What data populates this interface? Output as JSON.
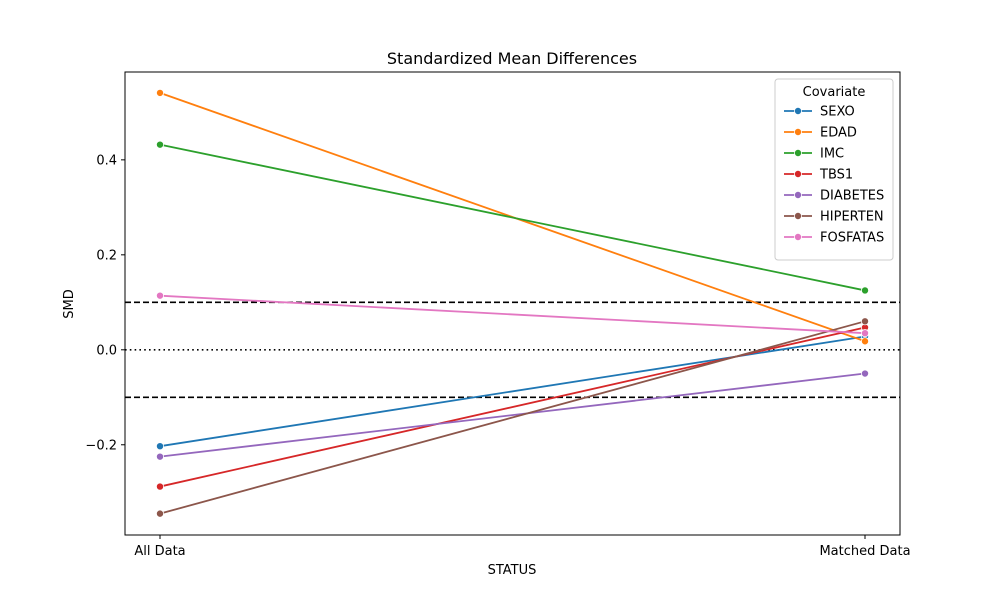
{
  "chart_data": {
    "type": "line",
    "title": "Standardized Mean Differences",
    "xlabel": "STATUS",
    "ylabel": "SMD",
    "categories": [
      "All Data",
      "Matched Data"
    ],
    "ylim": [
      -0.39,
      0.585
    ],
    "yticks": [
      -0.2,
      0.0,
      0.2,
      0.4
    ],
    "ytick_labels": [
      "−0.2",
      "0.0",
      "0.2",
      "0.4"
    ],
    "reference_lines": [
      {
        "y": 0.1,
        "style": "dashed",
        "color": "#000000"
      },
      {
        "y": 0.0,
        "style": "dotted",
        "color": "#000000"
      },
      {
        "y": -0.1,
        "style": "dashed",
        "color": "#000000"
      }
    ],
    "legend": {
      "title": "Covariate",
      "placement": "top-right"
    },
    "grid": false,
    "series": [
      {
        "name": "SEXO",
        "color": "#1f77b4",
        "values": [
          -0.203,
          0.028
        ]
      },
      {
        "name": "EDAD",
        "color": "#ff7f0e",
        "values": [
          0.541,
          0.018
        ]
      },
      {
        "name": "IMC",
        "color": "#2ca02c",
        "values": [
          0.432,
          0.125
        ]
      },
      {
        "name": "TBS1",
        "color": "#d62728",
        "values": [
          -0.288,
          0.047
        ]
      },
      {
        "name": "DIABETES",
        "color": "#9467bd",
        "values": [
          -0.225,
          -0.05
        ]
      },
      {
        "name": "HIPERTEN",
        "color": "#8c564b",
        "values": [
          -0.345,
          0.06
        ]
      },
      {
        "name": "FOSFATAS",
        "color": "#e377c2",
        "values": [
          0.114,
          0.035
        ]
      }
    ]
  }
}
